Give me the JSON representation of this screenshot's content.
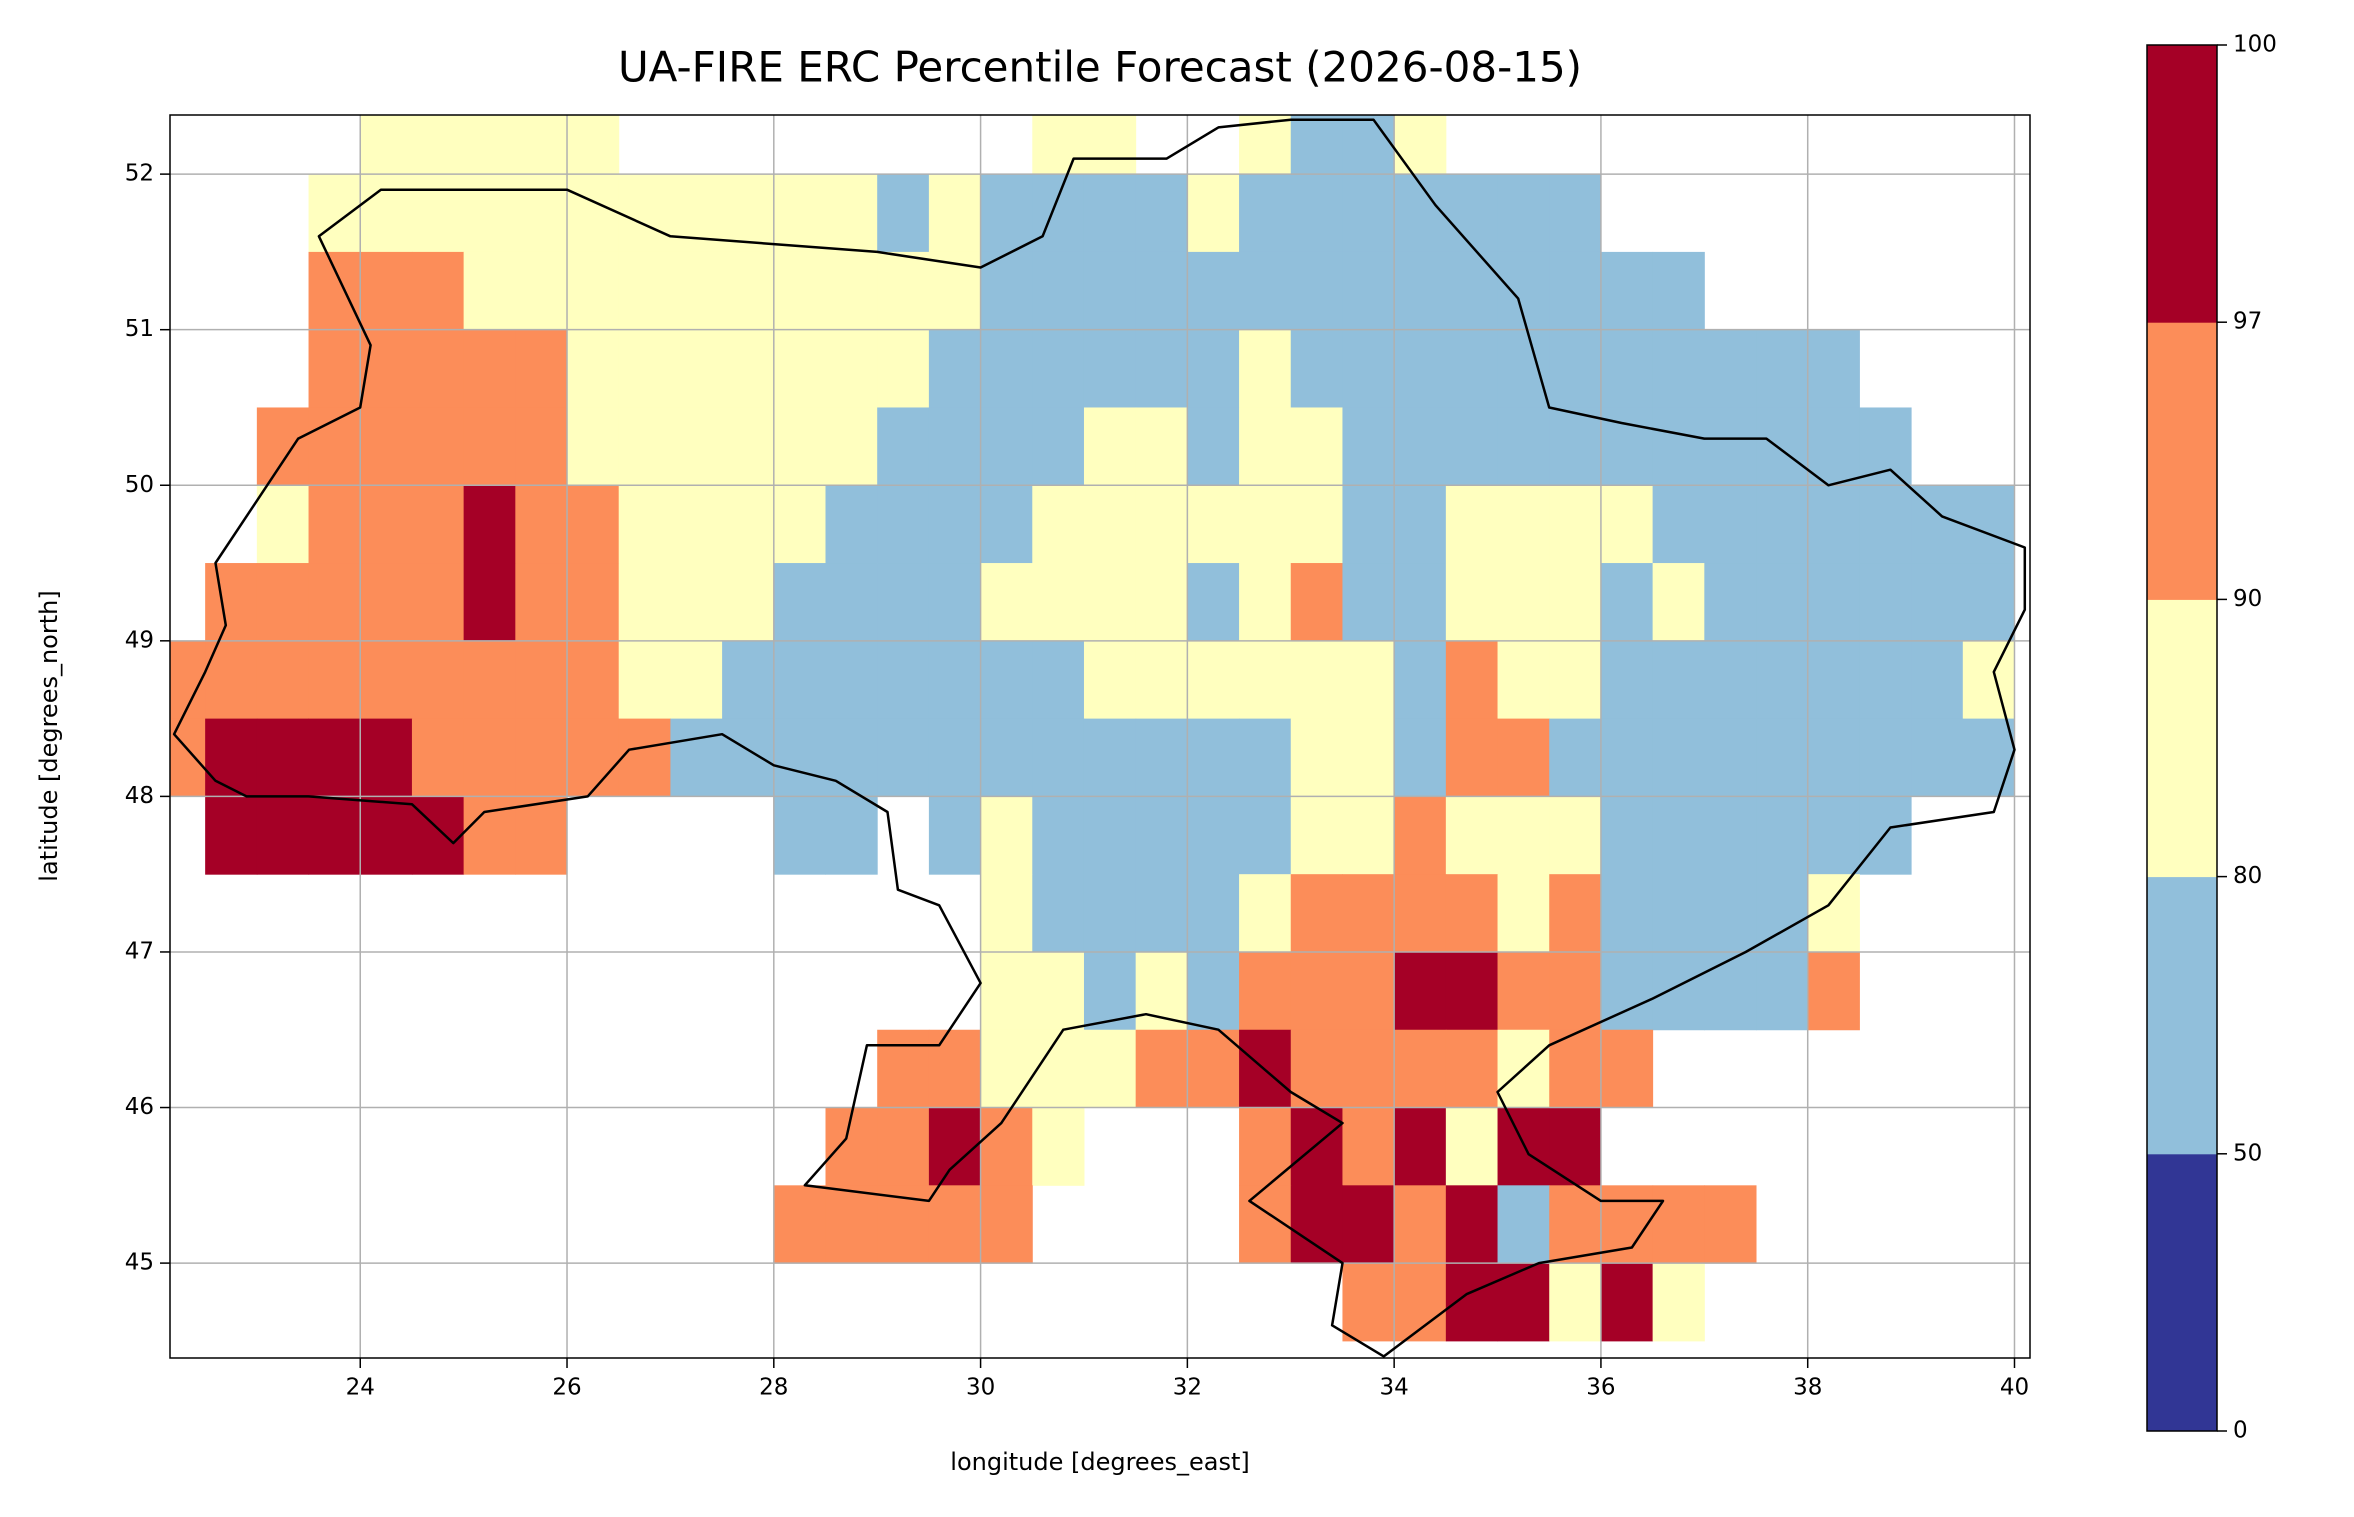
{
  "chart_data": {
    "type": "heatmap",
    "title": "UA-FIRE ERC Percentile Forecast (2026-08-15)",
    "xlabel": "longitude [degrees_east]",
    "ylabel": "latitude [degrees_north]",
    "xlim": [
      22.16,
      40.15
    ],
    "ylim": [
      44.39,
      52.38
    ],
    "xticks": [
      24,
      26,
      28,
      30,
      32,
      34,
      36,
      38,
      40
    ],
    "yticks": [
      45,
      46,
      47,
      48,
      49,
      50,
      51,
      52
    ],
    "grid": true,
    "x_edges": [
      22,
      22.5,
      23,
      23.5,
      24,
      24.5,
      25,
      25.5,
      26,
      26.5,
      27,
      27.5,
      28,
      28.5,
      29,
      29.5,
      30,
      30.5,
      31,
      31.5,
      32,
      32.5,
      33,
      33.5,
      34,
      34.5,
      35,
      35.5,
      36,
      36.5,
      37,
      37.5,
      38,
      38.5,
      39,
      39.5,
      40
    ],
    "y_edges": [
      52.5,
      52,
      51.5,
      51,
      50.5,
      50,
      49.5,
      49,
      48.5,
      48,
      47.5,
      47,
      46.5,
      46,
      45.5,
      45,
      44.5
    ],
    "values": [
      [
        null,
        null,
        null,
        null,
        85,
        85,
        85,
        85,
        85,
        null,
        null,
        null,
        null,
        null,
        null,
        null,
        null,
        85,
        85,
        null,
        null,
        85,
        65,
        65,
        85,
        null,
        null,
        null,
        null,
        null,
        null,
        null,
        null,
        null,
        null,
        null
      ],
      [
        null,
        null,
        null,
        85,
        85,
        85,
        85,
        85,
        85,
        85,
        85,
        85,
        85,
        85,
        65,
        85,
        65,
        65,
        65,
        65,
        85,
        65,
        65,
        65,
        65,
        65,
        65,
        65,
        null,
        null,
        null,
        null,
        null,
        null,
        null,
        null
      ],
      [
        null,
        null,
        null,
        93,
        93,
        93,
        85,
        85,
        85,
        85,
        85,
        85,
        85,
        85,
        85,
        85,
        65,
        65,
        65,
        65,
        65,
        65,
        65,
        65,
        65,
        65,
        65,
        65,
        65,
        65,
        null,
        null,
        null,
        null,
        null,
        null
      ],
      [
        null,
        null,
        null,
        93,
        93,
        93,
        93,
        93,
        85,
        85,
        85,
        85,
        85,
        85,
        85,
        65,
        65,
        65,
        65,
        65,
        65,
        85,
        65,
        65,
        65,
        65,
        65,
        65,
        65,
        65,
        65,
        65,
        65,
        null,
        null,
        null
      ],
      [
        null,
        null,
        93,
        93,
        93,
        93,
        93,
        93,
        85,
        85,
        85,
        85,
        85,
        85,
        65,
        65,
        65,
        65,
        85,
        85,
        65,
        85,
        85,
        65,
        65,
        65,
        65,
        65,
        65,
        65,
        65,
        65,
        65,
        65,
        null,
        null
      ],
      [
        null,
        null,
        85,
        93,
        93,
        93,
        98,
        93,
        93,
        85,
        85,
        85,
        85,
        65,
        65,
        65,
        65,
        85,
        85,
        85,
        85,
        85,
        85,
        65,
        65,
        85,
        85,
        85,
        85,
        65,
        65,
        65,
        65,
        65,
        65,
        65
      ],
      [
        null,
        93,
        93,
        93,
        93,
        93,
        98,
        93,
        93,
        85,
        85,
        85,
        65,
        65,
        65,
        65,
        85,
        85,
        85,
        85,
        65,
        85,
        93,
        65,
        65,
        85,
        85,
        85,
        65,
        85,
        65,
        65,
        65,
        65,
        65,
        65
      ],
      [
        93,
        93,
        93,
        93,
        93,
        93,
        93,
        93,
        93,
        85,
        85,
        65,
        65,
        65,
        65,
        65,
        65,
        65,
        85,
        85,
        85,
        85,
        85,
        85,
        65,
        93,
        85,
        85,
        65,
        65,
        65,
        65,
        65,
        65,
        65,
        85
      ],
      [
        93,
        98,
        98,
        98,
        98,
        93,
        93,
        93,
        93,
        93,
        65,
        65,
        65,
        65,
        65,
        65,
        65,
        65,
        65,
        65,
        65,
        65,
        85,
        85,
        65,
        93,
        93,
        65,
        65,
        65,
        65,
        65,
        65,
        65,
        65,
        65
      ],
      [
        null,
        98,
        98,
        98,
        98,
        98,
        93,
        93,
        null,
        null,
        null,
        null,
        65,
        65,
        null,
        65,
        85,
        65,
        65,
        65,
        65,
        65,
        85,
        85,
        93,
        85,
        85,
        85,
        65,
        65,
        65,
        65,
        65,
        65,
        null,
        null
      ],
      [
        null,
        null,
        null,
        null,
        null,
        null,
        null,
        null,
        null,
        null,
        null,
        null,
        null,
        null,
        null,
        null,
        85,
        65,
        65,
        65,
        65,
        85,
        93,
        93,
        93,
        93,
        85,
        93,
        65,
        65,
        65,
        65,
        85,
        null,
        null,
        null
      ],
      [
        null,
        null,
        null,
        null,
        null,
        null,
        null,
        null,
        null,
        null,
        null,
        null,
        null,
        null,
        null,
        null,
        85,
        85,
        65,
        85,
        65,
        93,
        93,
        93,
        98,
        98,
        93,
        93,
        65,
        65,
        65,
        65,
        93,
        null,
        null,
        null
      ],
      [
        null,
        null,
        null,
        null,
        null,
        null,
        null,
        null,
        null,
        null,
        null,
        null,
        null,
        null,
        93,
        93,
        85,
        85,
        85,
        93,
        93,
        98,
        93,
        93,
        93,
        93,
        85,
        93,
        93,
        null,
        null,
        null,
        null,
        null,
        null,
        null
      ],
      [
        null,
        null,
        null,
        null,
        null,
        null,
        null,
        null,
        null,
        null,
        null,
        null,
        null,
        93,
        93,
        98,
        93,
        85,
        null,
        null,
        null,
        93,
        98,
        93,
        98,
        85,
        98,
        98,
        null,
        null,
        null,
        null,
        null,
        null,
        null,
        null
      ],
      [
        null,
        null,
        null,
        null,
        null,
        null,
        null,
        null,
        null,
        null,
        null,
        null,
        93,
        93,
        93,
        93,
        93,
        null,
        null,
        null,
        null,
        93,
        98,
        98,
        93,
        98,
        65,
        93,
        93,
        93,
        93,
        null,
        null,
        null,
        null,
        null
      ],
      [
        null,
        null,
        null,
        null,
        null,
        null,
        null,
        null,
        null,
        null,
        null,
        null,
        null,
        null,
        null,
        null,
        null,
        null,
        null,
        null,
        null,
        null,
        null,
        93,
        93,
        98,
        98,
        85,
        98,
        85,
        null,
        null,
        null,
        null,
        null,
        null
      ]
    ],
    "colorbar": {
      "boundaries": [
        0,
        50,
        80,
        90,
        97,
        100
      ],
      "colors": [
        "#313695",
        "#91bfdb",
        "#ffffbf",
        "#fc8d59",
        "#a50026"
      ]
    }
  }
}
